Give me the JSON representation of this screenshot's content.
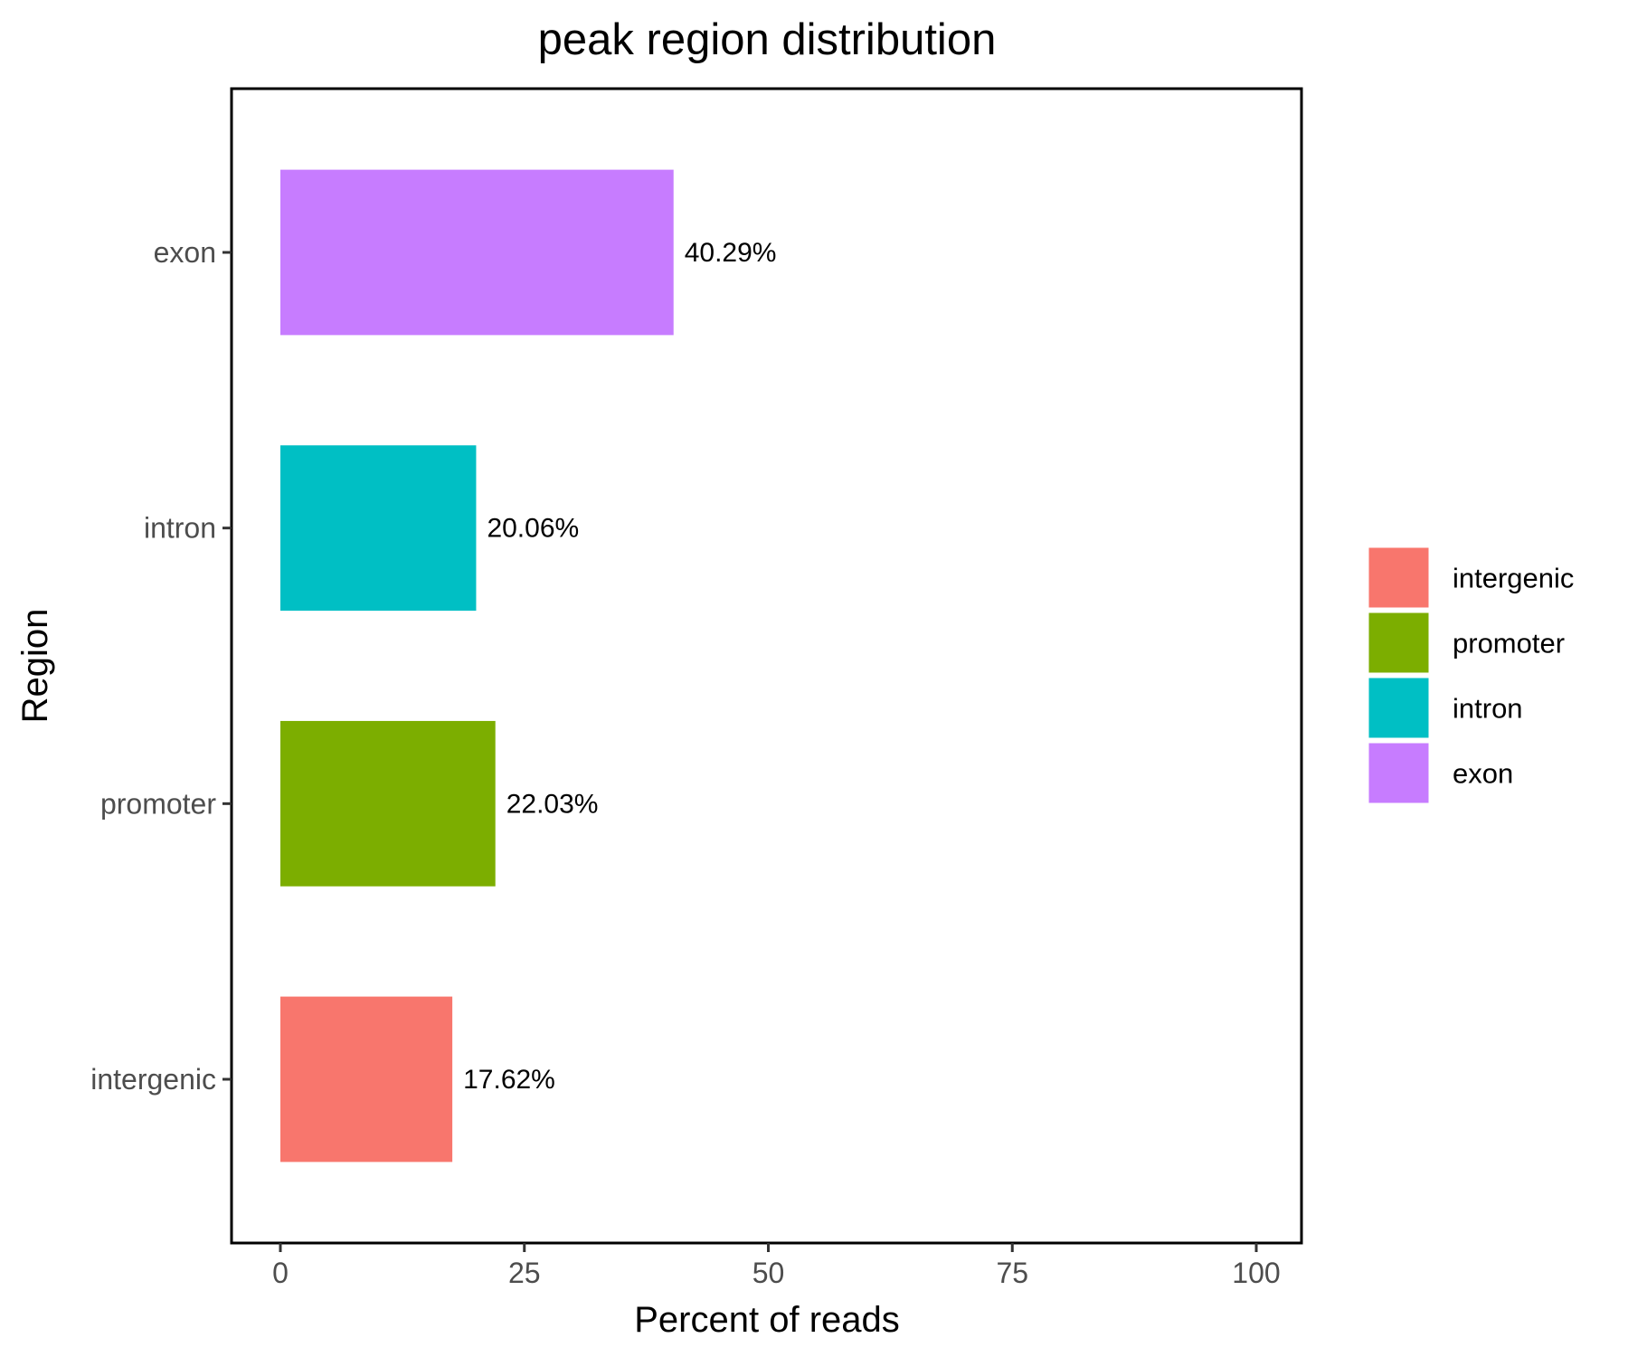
{
  "chart_data": {
    "type": "bar",
    "orientation": "horizontal",
    "title": "peak region distribution",
    "xlabel": "Percent of reads",
    "ylabel": "Region",
    "categories": [
      "intergenic",
      "promoter",
      "intron",
      "exon"
    ],
    "values": [
      17.62,
      22.03,
      20.06,
      40.29
    ],
    "data_labels": [
      "17.62%",
      "22.03%",
      "20.06%",
      "40.29%"
    ],
    "colors": [
      "#F8766D",
      "#7CAE00",
      "#00BFC4",
      "#C77CFF"
    ],
    "xlim": [
      0,
      100
    ],
    "x_ticks": [
      0,
      25,
      50,
      75,
      100
    ],
    "grid": false,
    "legend": {
      "position": "right",
      "entries": [
        "intergenic",
        "promoter",
        "intron",
        "exon"
      ]
    }
  }
}
